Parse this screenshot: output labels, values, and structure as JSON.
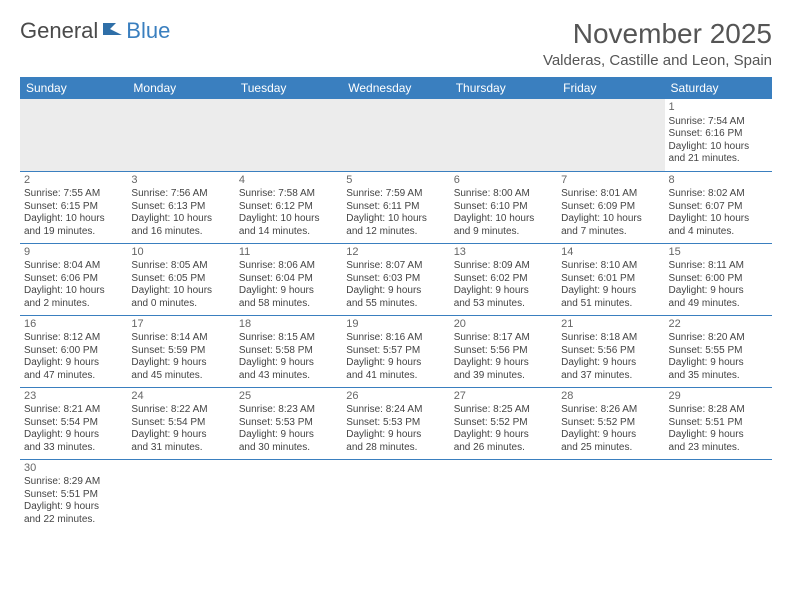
{
  "logo": {
    "part1": "General",
    "part2": "Blue"
  },
  "title": "November 2025",
  "location": "Valderas, Castille and Leon, Spain",
  "colors": {
    "header_bg": "#3a7fbf",
    "header_fg": "#ffffff",
    "row_border": "#3a7fbf",
    "blank_bg": "#ececec",
    "text": "#444444"
  },
  "fonts": {
    "title_size": 28,
    "location_size": 15,
    "th_size": 12,
    "cell_size": 10
  },
  "weekdays": [
    "Sunday",
    "Monday",
    "Tuesday",
    "Wednesday",
    "Thursday",
    "Friday",
    "Saturday"
  ],
  "weeks": [
    [
      null,
      null,
      null,
      null,
      null,
      null,
      {
        "n": "1",
        "sr": "Sunrise: 7:54 AM",
        "ss": "Sunset: 6:16 PM",
        "d1": "Daylight: 10 hours",
        "d2": "and 21 minutes."
      }
    ],
    [
      {
        "n": "2",
        "sr": "Sunrise: 7:55 AM",
        "ss": "Sunset: 6:15 PM",
        "d1": "Daylight: 10 hours",
        "d2": "and 19 minutes."
      },
      {
        "n": "3",
        "sr": "Sunrise: 7:56 AM",
        "ss": "Sunset: 6:13 PM",
        "d1": "Daylight: 10 hours",
        "d2": "and 16 minutes."
      },
      {
        "n": "4",
        "sr": "Sunrise: 7:58 AM",
        "ss": "Sunset: 6:12 PM",
        "d1": "Daylight: 10 hours",
        "d2": "and 14 minutes."
      },
      {
        "n": "5",
        "sr": "Sunrise: 7:59 AM",
        "ss": "Sunset: 6:11 PM",
        "d1": "Daylight: 10 hours",
        "d2": "and 12 minutes."
      },
      {
        "n": "6",
        "sr": "Sunrise: 8:00 AM",
        "ss": "Sunset: 6:10 PM",
        "d1": "Daylight: 10 hours",
        "d2": "and 9 minutes."
      },
      {
        "n": "7",
        "sr": "Sunrise: 8:01 AM",
        "ss": "Sunset: 6:09 PM",
        "d1": "Daylight: 10 hours",
        "d2": "and 7 minutes."
      },
      {
        "n": "8",
        "sr": "Sunrise: 8:02 AM",
        "ss": "Sunset: 6:07 PM",
        "d1": "Daylight: 10 hours",
        "d2": "and 4 minutes."
      }
    ],
    [
      {
        "n": "9",
        "sr": "Sunrise: 8:04 AM",
        "ss": "Sunset: 6:06 PM",
        "d1": "Daylight: 10 hours",
        "d2": "and 2 minutes."
      },
      {
        "n": "10",
        "sr": "Sunrise: 8:05 AM",
        "ss": "Sunset: 6:05 PM",
        "d1": "Daylight: 10 hours",
        "d2": "and 0 minutes."
      },
      {
        "n": "11",
        "sr": "Sunrise: 8:06 AM",
        "ss": "Sunset: 6:04 PM",
        "d1": "Daylight: 9 hours",
        "d2": "and 58 minutes."
      },
      {
        "n": "12",
        "sr": "Sunrise: 8:07 AM",
        "ss": "Sunset: 6:03 PM",
        "d1": "Daylight: 9 hours",
        "d2": "and 55 minutes."
      },
      {
        "n": "13",
        "sr": "Sunrise: 8:09 AM",
        "ss": "Sunset: 6:02 PM",
        "d1": "Daylight: 9 hours",
        "d2": "and 53 minutes."
      },
      {
        "n": "14",
        "sr": "Sunrise: 8:10 AM",
        "ss": "Sunset: 6:01 PM",
        "d1": "Daylight: 9 hours",
        "d2": "and 51 minutes."
      },
      {
        "n": "15",
        "sr": "Sunrise: 8:11 AM",
        "ss": "Sunset: 6:00 PM",
        "d1": "Daylight: 9 hours",
        "d2": "and 49 minutes."
      }
    ],
    [
      {
        "n": "16",
        "sr": "Sunrise: 8:12 AM",
        "ss": "Sunset: 6:00 PM",
        "d1": "Daylight: 9 hours",
        "d2": "and 47 minutes."
      },
      {
        "n": "17",
        "sr": "Sunrise: 8:14 AM",
        "ss": "Sunset: 5:59 PM",
        "d1": "Daylight: 9 hours",
        "d2": "and 45 minutes."
      },
      {
        "n": "18",
        "sr": "Sunrise: 8:15 AM",
        "ss": "Sunset: 5:58 PM",
        "d1": "Daylight: 9 hours",
        "d2": "and 43 minutes."
      },
      {
        "n": "19",
        "sr": "Sunrise: 8:16 AM",
        "ss": "Sunset: 5:57 PM",
        "d1": "Daylight: 9 hours",
        "d2": "and 41 minutes."
      },
      {
        "n": "20",
        "sr": "Sunrise: 8:17 AM",
        "ss": "Sunset: 5:56 PM",
        "d1": "Daylight: 9 hours",
        "d2": "and 39 minutes."
      },
      {
        "n": "21",
        "sr": "Sunrise: 8:18 AM",
        "ss": "Sunset: 5:56 PM",
        "d1": "Daylight: 9 hours",
        "d2": "and 37 minutes."
      },
      {
        "n": "22",
        "sr": "Sunrise: 8:20 AM",
        "ss": "Sunset: 5:55 PM",
        "d1": "Daylight: 9 hours",
        "d2": "and 35 minutes."
      }
    ],
    [
      {
        "n": "23",
        "sr": "Sunrise: 8:21 AM",
        "ss": "Sunset: 5:54 PM",
        "d1": "Daylight: 9 hours",
        "d2": "and 33 minutes."
      },
      {
        "n": "24",
        "sr": "Sunrise: 8:22 AM",
        "ss": "Sunset: 5:54 PM",
        "d1": "Daylight: 9 hours",
        "d2": "and 31 minutes."
      },
      {
        "n": "25",
        "sr": "Sunrise: 8:23 AM",
        "ss": "Sunset: 5:53 PM",
        "d1": "Daylight: 9 hours",
        "d2": "and 30 minutes."
      },
      {
        "n": "26",
        "sr": "Sunrise: 8:24 AM",
        "ss": "Sunset: 5:53 PM",
        "d1": "Daylight: 9 hours",
        "d2": "and 28 minutes."
      },
      {
        "n": "27",
        "sr": "Sunrise: 8:25 AM",
        "ss": "Sunset: 5:52 PM",
        "d1": "Daylight: 9 hours",
        "d2": "and 26 minutes."
      },
      {
        "n": "28",
        "sr": "Sunrise: 8:26 AM",
        "ss": "Sunset: 5:52 PM",
        "d1": "Daylight: 9 hours",
        "d2": "and 25 minutes."
      },
      {
        "n": "29",
        "sr": "Sunrise: 8:28 AM",
        "ss": "Sunset: 5:51 PM",
        "d1": "Daylight: 9 hours",
        "d2": "and 23 minutes."
      }
    ],
    [
      {
        "n": "30",
        "sr": "Sunrise: 8:29 AM",
        "ss": "Sunset: 5:51 PM",
        "d1": "Daylight: 9 hours",
        "d2": "and 22 minutes."
      },
      null,
      null,
      null,
      null,
      null,
      null
    ]
  ]
}
